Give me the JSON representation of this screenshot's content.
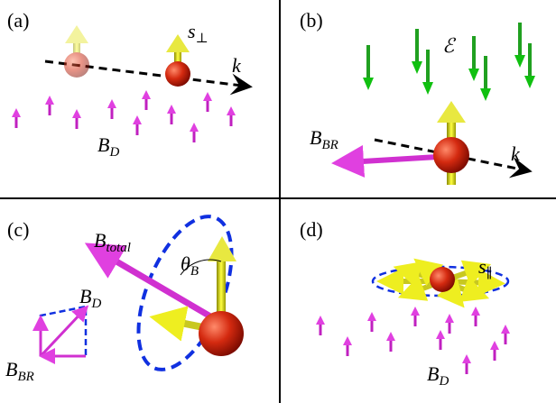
{
  "panels": [
    {
      "label": "(a)",
      "annotations": [
        {
          "base": "s",
          "sub": "⊥"
        },
        {
          "base": "k"
        },
        {
          "base": "B",
          "sub": "D"
        }
      ]
    },
    {
      "label": "(b)",
      "annotations": [
        {
          "base": "ℰ"
        },
        {
          "base": "B",
          "sub": "BR"
        },
        {
          "base": "k"
        }
      ]
    },
    {
      "label": "(c)",
      "annotations": [
        {
          "base": "B",
          "sub": "total"
        },
        {
          "base": "θ",
          "sub": "B"
        },
        {
          "base": "B",
          "sub": "D"
        },
        {
          "base": "B",
          "sub": "BR"
        }
      ]
    },
    {
      "label": "(d)",
      "annotations": [
        {
          "base": "s",
          "sub": "∥"
        },
        {
          "base": "B",
          "sub": "D"
        }
      ]
    }
  ]
}
